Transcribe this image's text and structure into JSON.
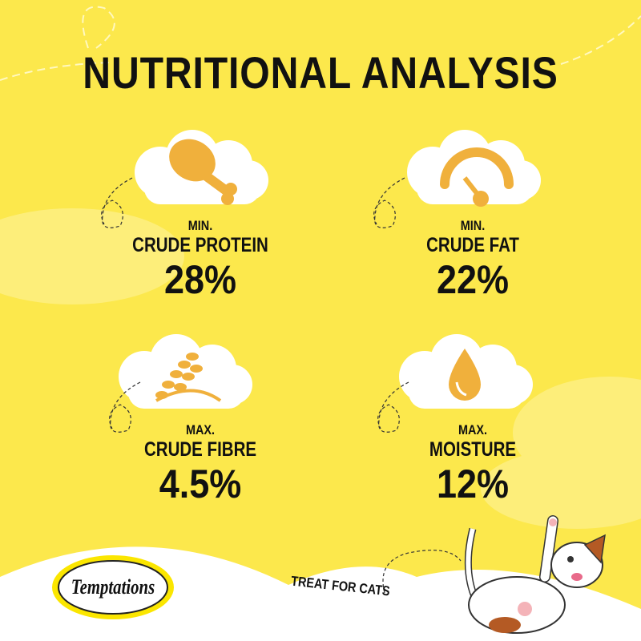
{
  "title": "NUTRITIONAL ANALYSIS",
  "colors": {
    "background": "#fce84c",
    "icon": "#f0b03c",
    "cloud": "#ffffff",
    "text": "#111111"
  },
  "items": [
    {
      "qualifier": "MIN.",
      "name": "CRUDE PROTEIN",
      "value": "28%",
      "icon": "chicken-leg-icon"
    },
    {
      "qualifier": "MIN.",
      "name": "CRUDE FAT",
      "value": "22%",
      "icon": "gauge-icon"
    },
    {
      "qualifier": "MAX.",
      "name": "CRUDE FIBRE",
      "value": "4.5%",
      "icon": "wheat-icon"
    },
    {
      "qualifier": "MAX.",
      "name": "MOISTURE",
      "value": "12%",
      "icon": "droplet-icon"
    }
  ],
  "footer": {
    "brand": "Temptations",
    "tagline": "TREAT FOR CATS"
  }
}
